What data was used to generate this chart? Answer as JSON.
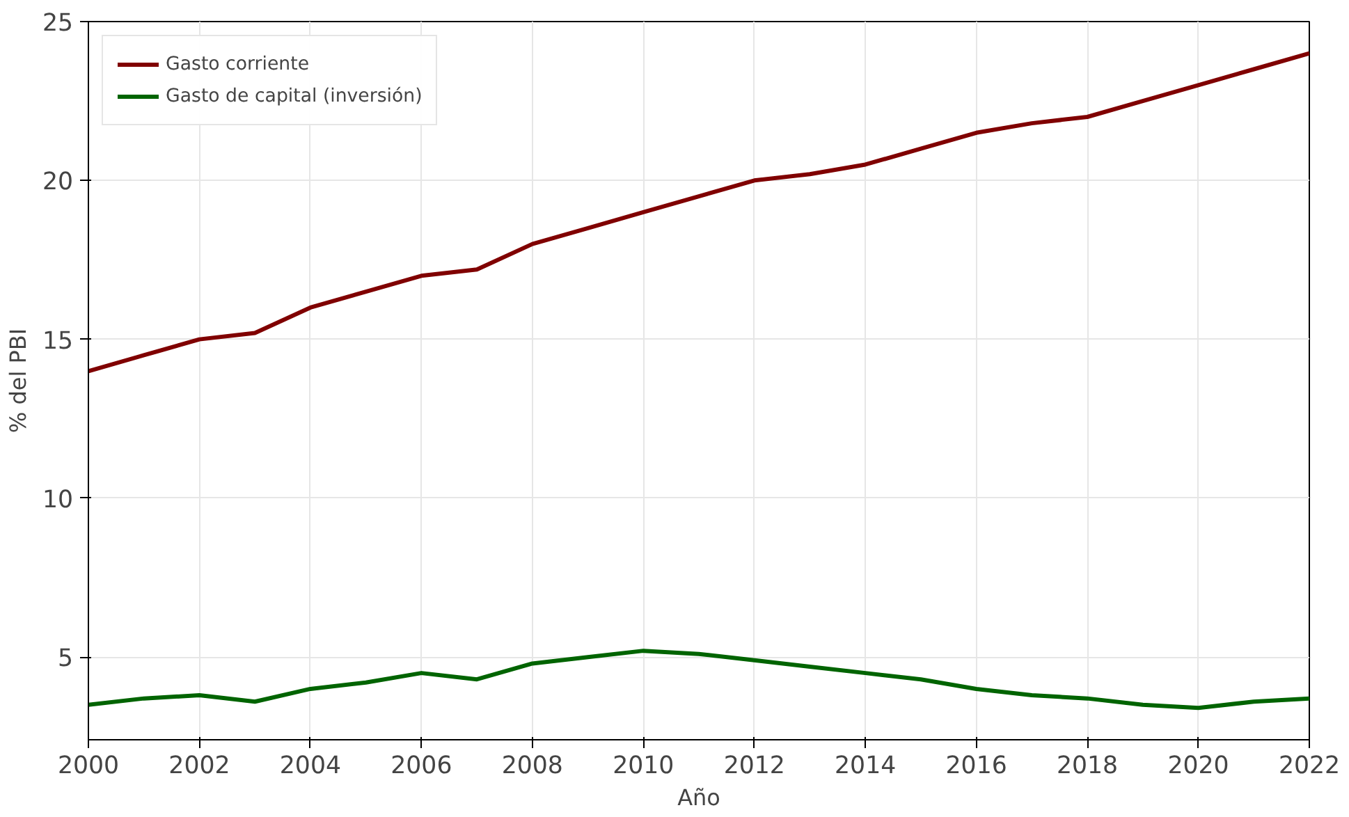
{
  "chart_data": {
    "type": "line",
    "xlabel": "Año",
    "ylabel": "% del PBI",
    "x": [
      2000,
      2001,
      2002,
      2003,
      2004,
      2005,
      2006,
      2007,
      2008,
      2009,
      2010,
      2011,
      2012,
      2013,
      2014,
      2015,
      2016,
      2017,
      2018,
      2019,
      2020,
      2021,
      2022
    ],
    "series": [
      {
        "name": "Gasto corriente",
        "color": "#800000",
        "values": [
          14,
          14.5,
          15,
          15.2,
          16,
          16.5,
          17,
          17.2,
          18,
          18.5,
          19,
          19.5,
          20,
          20.2,
          20.5,
          21,
          21.5,
          21.8,
          22,
          22.5,
          23,
          23.5,
          24
        ]
      },
      {
        "name": "Gasto de capital (inversión)",
        "color": "#006400",
        "values": [
          3.5,
          3.7,
          3.8,
          3.6,
          4.0,
          4.2,
          4.5,
          4.3,
          4.8,
          5.0,
          5.2,
          5.1,
          4.9,
          4.7,
          4.5,
          4.3,
          4.0,
          3.8,
          3.7,
          3.5,
          3.4,
          3.6,
          3.7
        ]
      }
    ],
    "xlim": [
      2000,
      2022
    ],
    "ylim": [
      2.4,
      25
    ],
    "xticks": [
      2000,
      2002,
      2004,
      2006,
      2008,
      2010,
      2012,
      2014,
      2016,
      2018,
      2020,
      2022
    ],
    "yticks": [
      5,
      10,
      15,
      20,
      25
    ],
    "grid": true,
    "legend": "top left",
    "line_style": "solid",
    "marker": "none"
  }
}
